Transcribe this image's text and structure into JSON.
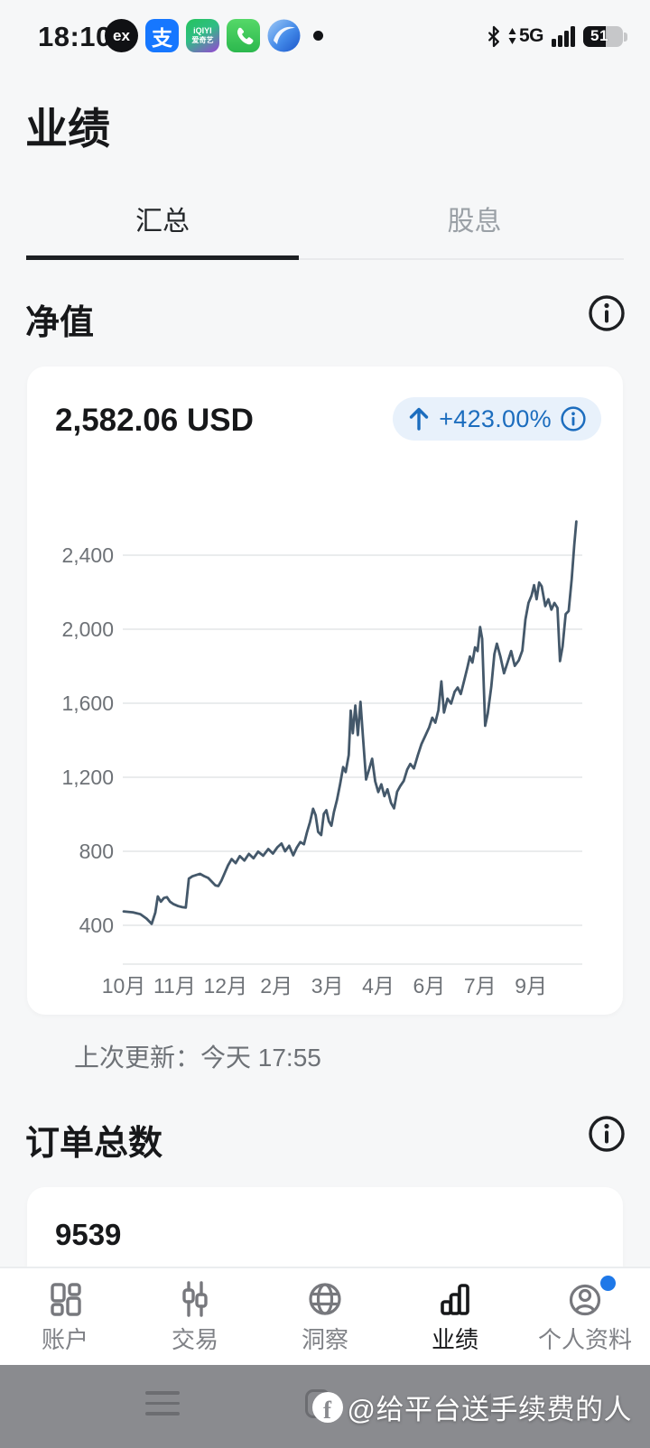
{
  "status_bar": {
    "time": "18:10",
    "ex_label": "ex",
    "alipay_glyph": "支",
    "iqiyi_line1": "iQIYI",
    "iqiyi_line2": "爱奇艺",
    "network": "5G",
    "battery": "51"
  },
  "header": {
    "title": "业绩"
  },
  "tabs": [
    {
      "label": "汇总",
      "active": true
    },
    {
      "label": "股息",
      "active": false
    }
  ],
  "net_value": {
    "title": "净值",
    "amount": "2,582.06 USD",
    "change_percent": "+423.00%",
    "last_updated": "上次更新：今天 17:55"
  },
  "orders": {
    "title": "订单总数",
    "count": "9539"
  },
  "bottom_nav": [
    {
      "label": "账户"
    },
    {
      "label": "交易"
    },
    {
      "label": "洞察"
    },
    {
      "label": "业绩",
      "active": true
    },
    {
      "label": "个人资料",
      "badge": true
    }
  ],
  "system_bar": {
    "watermark": "@给平台送手续费的人"
  },
  "colors": {
    "accent_blue": "#1c6dbe",
    "badge_bg": "#e8f1fb",
    "line": "#44586a",
    "grid": "#e4e5e7",
    "axis_text": "#6e7277",
    "profile_badge": "#1e78e8"
  },
  "chart_data": {
    "type": "line",
    "title": "净值",
    "unit": "USD",
    "current_value": 2582.06,
    "change_percent": "+423.00%",
    "x_labels": [
      "10月",
      "11月",
      "12月",
      "2月",
      "3月",
      "4月",
      "6月",
      "7月",
      "9月"
    ],
    "y_ticks": [
      400,
      800,
      1200,
      1600,
      2000,
      2400
    ],
    "y_tick_labels": [
      "400",
      "800",
      "1,200",
      "1,600",
      "2,000",
      "2,400"
    ],
    "y_range": [
      400,
      2600
    ],
    "grid": "horizontal",
    "x_unit": "label_index",
    "points": [
      [
        0.0,
        475
      ],
      [
        0.18,
        470
      ],
      [
        0.33,
        460
      ],
      [
        0.45,
        436
      ],
      [
        0.55,
        408
      ],
      [
        0.62,
        468
      ],
      [
        0.67,
        556
      ],
      [
        0.73,
        528
      ],
      [
        0.79,
        548
      ],
      [
        0.85,
        552
      ],
      [
        0.91,
        528
      ],
      [
        0.98,
        514
      ],
      [
        1.07,
        504
      ],
      [
        1.15,
        498
      ],
      [
        1.22,
        496
      ],
      [
        1.28,
        652
      ],
      [
        1.35,
        665
      ],
      [
        1.43,
        672
      ],
      [
        1.5,
        678
      ],
      [
        1.58,
        666
      ],
      [
        1.66,
        656
      ],
      [
        1.73,
        636
      ],
      [
        1.8,
        616
      ],
      [
        1.86,
        612
      ],
      [
        1.92,
        642
      ],
      [
        1.98,
        680
      ],
      [
        2.05,
        724
      ],
      [
        2.12,
        758
      ],
      [
        2.2,
        736
      ],
      [
        2.28,
        774
      ],
      [
        2.37,
        750
      ],
      [
        2.46,
        786
      ],
      [
        2.55,
        762
      ],
      [
        2.64,
        798
      ],
      [
        2.74,
        776
      ],
      [
        2.84,
        812
      ],
      [
        2.93,
        788
      ],
      [
        3.02,
        822
      ],
      [
        3.1,
        842
      ],
      [
        3.17,
        800
      ],
      [
        3.25,
        830
      ],
      [
        3.33,
        778
      ],
      [
        3.4,
        820
      ],
      [
        3.47,
        850
      ],
      [
        3.54,
        838
      ],
      [
        3.6,
        902
      ],
      [
        3.66,
        958
      ],
      [
        3.72,
        1030
      ],
      [
        3.77,
        995
      ],
      [
        3.82,
        905
      ],
      [
        3.88,
        888
      ],
      [
        3.93,
        1002
      ],
      [
        3.98,
        1022
      ],
      [
        4.03,
        962
      ],
      [
        4.08,
        938
      ],
      [
        4.13,
        1012
      ],
      [
        4.19,
        1078
      ],
      [
        4.25,
        1162
      ],
      [
        4.31,
        1255
      ],
      [
        4.36,
        1228
      ],
      [
        4.42,
        1320
      ],
      [
        4.46,
        1560
      ],
      [
        4.5,
        1438
      ],
      [
        4.55,
        1588
      ],
      [
        4.6,
        1428
      ],
      [
        4.65,
        1608
      ],
      [
        4.7,
        1415
      ],
      [
        4.76,
        1188
      ],
      [
        4.82,
        1242
      ],
      [
        4.88,
        1300
      ],
      [
        4.94,
        1178
      ],
      [
        5.0,
        1120
      ],
      [
        5.06,
        1162
      ],
      [
        5.12,
        1098
      ],
      [
        5.18,
        1135
      ],
      [
        5.25,
        1062
      ],
      [
        5.31,
        1032
      ],
      [
        5.37,
        1122
      ],
      [
        5.43,
        1152
      ],
      [
        5.5,
        1180
      ],
      [
        5.57,
        1242
      ],
      [
        5.63,
        1272
      ],
      [
        5.7,
        1248
      ],
      [
        5.78,
        1322
      ],
      [
        5.85,
        1380
      ],
      [
        5.92,
        1422
      ],
      [
        6.0,
        1470
      ],
      [
        6.06,
        1522
      ],
      [
        6.12,
        1495
      ],
      [
        6.18,
        1562
      ],
      [
        6.24,
        1718
      ],
      [
        6.29,
        1550
      ],
      [
        6.36,
        1625
      ],
      [
        6.43,
        1598
      ],
      [
        6.5,
        1662
      ],
      [
        6.56,
        1685
      ],
      [
        6.62,
        1650
      ],
      [
        6.69,
        1725
      ],
      [
        6.75,
        1792
      ],
      [
        6.8,
        1852
      ],
      [
        6.85,
        1820
      ],
      [
        6.9,
        1902
      ],
      [
        6.95,
        1882
      ],
      [
        7.0,
        2012
      ],
      [
        7.04,
        1948
      ],
      [
        7.1,
        1478
      ],
      [
        7.15,
        1545
      ],
      [
        7.22,
        1690
      ],
      [
        7.28,
        1865
      ],
      [
        7.33,
        1922
      ],
      [
        7.4,
        1850
      ],
      [
        7.47,
        1762
      ],
      [
        7.54,
        1822
      ],
      [
        7.61,
        1882
      ],
      [
        7.68,
        1802
      ],
      [
        7.76,
        1832
      ],
      [
        7.83,
        1885
      ],
      [
        7.89,
        2052
      ],
      [
        7.95,
        2142
      ],
      [
        8.01,
        2182
      ],
      [
        8.06,
        2238
      ],
      [
        8.11,
        2162
      ],
      [
        8.16,
        2252
      ],
      [
        8.21,
        2232
      ],
      [
        8.28,
        2125
      ],
      [
        8.34,
        2162
      ],
      [
        8.4,
        2106
      ],
      [
        8.46,
        2142
      ],
      [
        8.52,
        2115
      ],
      [
        8.57,
        1828
      ],
      [
        8.62,
        1908
      ],
      [
        8.68,
        2082
      ],
      [
        8.74,
        2098
      ],
      [
        8.8,
        2272
      ],
      [
        8.85,
        2455
      ],
      [
        8.89,
        2582
      ]
    ]
  }
}
